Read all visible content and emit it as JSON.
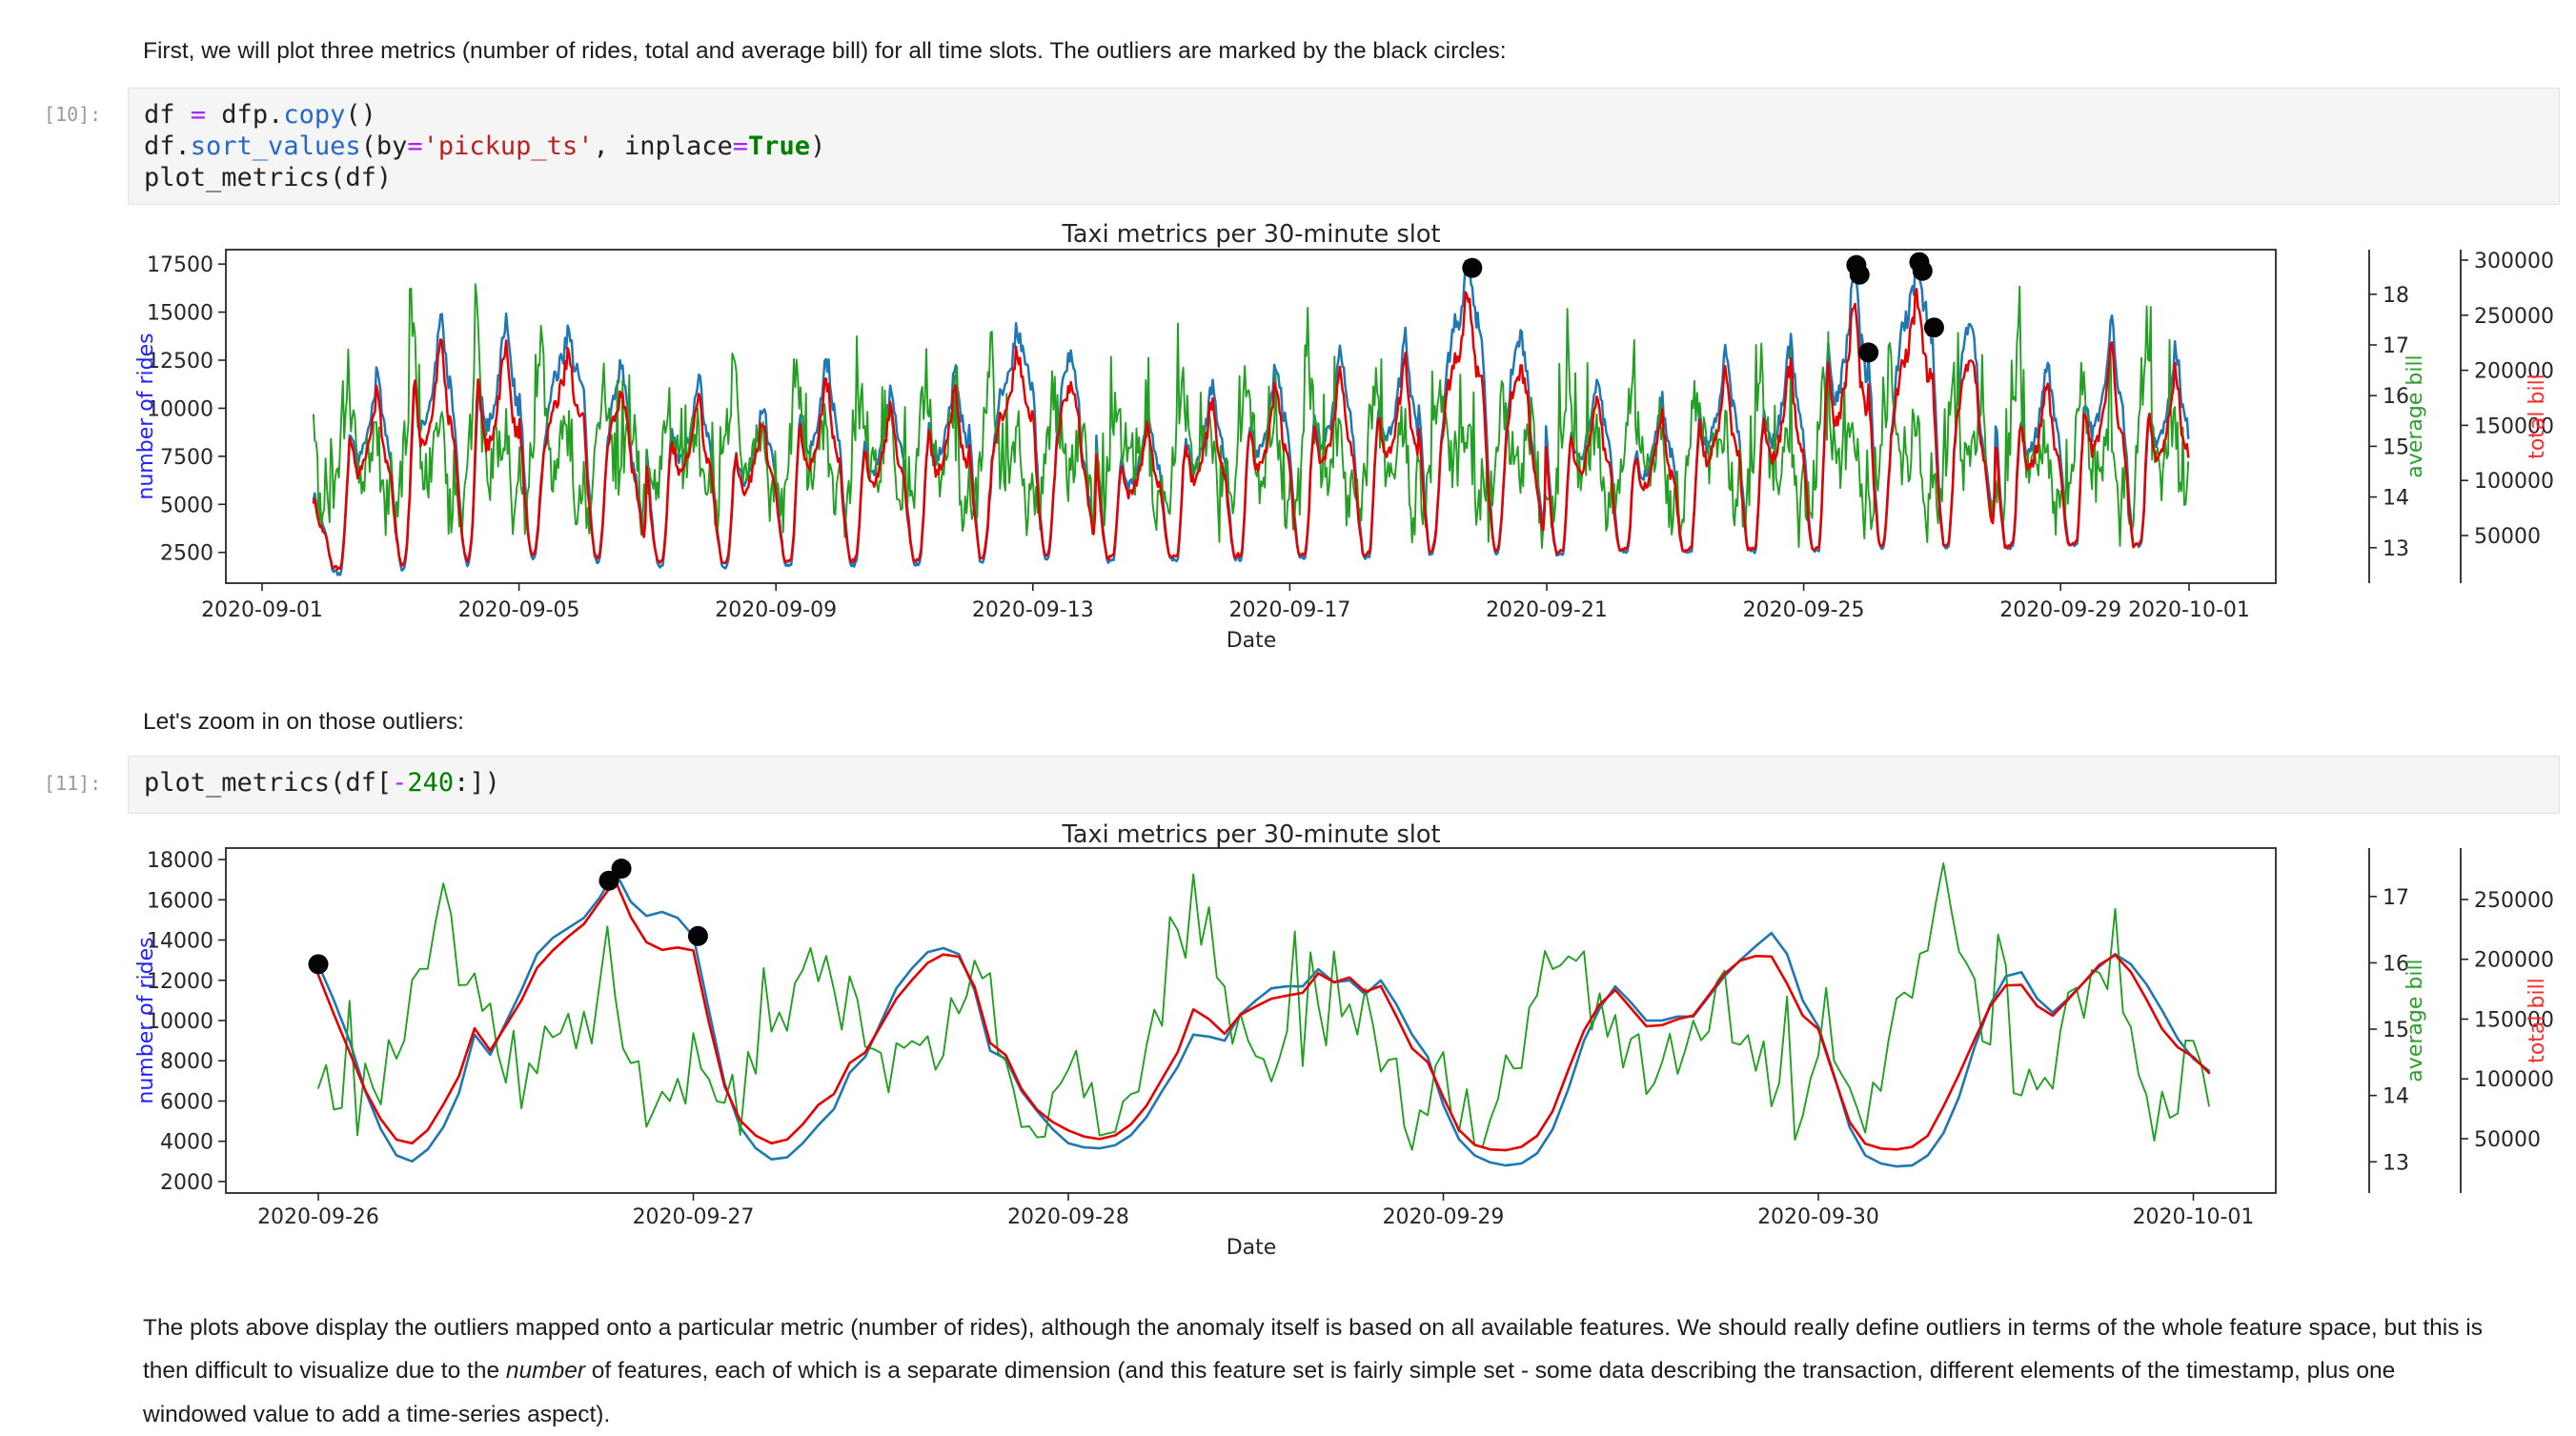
{
  "markdown": {
    "intro": "First, we will plot three metrics (number of rides, total and average bill) for all time slots. The outliers are marked by the black circles:",
    "zoom_note": "Let's zoom in on those outliers:",
    "conclusion_segments": [
      {
        "text": "The plots above display the outliers mapped onto a particular metric (number of rides), although the anomaly itself is based on all available features. We should really define outliers in terms of the whole feature space, but this is then difficult to visualize due to the ",
        "italic": false
      },
      {
        "text": "number",
        "italic": true
      },
      {
        "text": " of features, each of which is a separate dimension (and this feature set is fairly simple set - some data describing the transaction, different elements of the timestamp, plus one windowed value to add a time-series aspect).",
        "italic": false
      }
    ]
  },
  "code_colors": {
    "d": "#212121",
    "o": "#aa22ff",
    "p": "#2569c7",
    "s": "#ba2121",
    "k": "#008000",
    "n": "#008000"
  },
  "cells": [
    {
      "prompt": "[10]:",
      "lines": [
        [
          {
            "t": "df ",
            "c": "d"
          },
          {
            "t": "=",
            "c": "o"
          },
          {
            "t": " dfp.",
            "c": "d"
          },
          {
            "t": "copy",
            "c": "p"
          },
          {
            "t": "()",
            "c": "d"
          }
        ],
        [
          {
            "t": "df.",
            "c": "d"
          },
          {
            "t": "sort_values",
            "c": "p"
          },
          {
            "t": "(by",
            "c": "d"
          },
          {
            "t": "=",
            "c": "o"
          },
          {
            "t": "'pickup_ts'",
            "c": "s"
          },
          {
            "t": ", inplace",
            "c": "d"
          },
          {
            "t": "=",
            "c": "o"
          },
          {
            "t": "True",
            "c": "k"
          },
          {
            "t": ")",
            "c": "d"
          }
        ],
        [
          {
            "t": "plot_metrics(df)",
            "c": "d"
          }
        ]
      ]
    },
    {
      "prompt": "[11]:",
      "lines": [
        [
          {
            "t": "plot_metrics(df[",
            "c": "d"
          },
          {
            "t": "-",
            "c": "o"
          },
          {
            "t": "240",
            "c": "n"
          },
          {
            "t": ":])",
            "c": "d"
          }
        ]
      ]
    }
  ],
  "chart_data": [
    {
      "type": "line",
      "title": "Taxi metrics per 30-minute slot",
      "xlabel": "Date",
      "x_tick_labels": [
        "2020-09-01",
        "2020-09-05",
        "2020-09-09",
        "2020-09-13",
        "2020-09-17",
        "2020-09-21",
        "2020-09-25",
        "2020-09-29",
        "2020-10-01"
      ],
      "x_tick_days": [
        0,
        4,
        8,
        12,
        16,
        20,
        24,
        28,
        30
      ],
      "start_date": "2020-09-01",
      "t_range_days": [
        0.8,
        30.0
      ],
      "grid": false,
      "legend": "none",
      "series": [
        {
          "name": "number of rides",
          "axis": "rides",
          "color": "#1f77b4"
        },
        {
          "name": "average bill",
          "axis": "avg",
          "color": "#22a022"
        },
        {
          "name": "total bill",
          "axis": "total",
          "color": "#e60000"
        }
      ],
      "axes": {
        "rides": {
          "label": "number of rides",
          "label_color": "#2222ff",
          "ticks": [
            2500,
            5000,
            7500,
            10000,
            12500,
            15000,
            17500
          ],
          "ylim": [
            900,
            18250
          ]
        },
        "avg": {
          "label": "average bill",
          "label_color": "#2ca02c",
          "ticks": [
            13,
            14,
            15,
            16,
            17,
            18
          ],
          "ylim": [
            12.3,
            18.88
          ]
        },
        "total": {
          "label": "total bill",
          "label_color": "#ff2a2a",
          "ticks": [
            50000,
            100000,
            150000,
            200000,
            250000,
            300000
          ],
          "ylim": [
            6750,
            309500
          ]
        }
      },
      "daily_peak_rides": [
        5600,
        11900,
        14950,
        14850,
        14100,
        12050,
        11900,
        10250,
        12700,
        11000,
        12100,
        14200,
        13000,
        9900,
        11400,
        12600,
        13100,
        13900,
        17300,
        13800,
        12000,
        10500,
        13200,
        13500,
        17450,
        17600,
        14500,
        12550,
        14350,
        13300
      ],
      "saturday_day_indexes": [
        4,
        11,
        18,
        25
      ],
      "sunday_day_indexes": [
        5,
        12,
        19,
        26
      ],
      "day_shape_weekday": [
        0.62,
        0.45,
        0.32,
        0.21,
        0.135,
        0.12,
        0.17,
        0.32,
        0.56,
        0.75,
        0.7,
        0.62,
        0.6,
        0.63,
        0.66,
        0.7,
        0.75,
        0.82,
        0.92,
        1.0,
        0.93,
        0.8,
        0.76,
        0.7
      ],
      "day_shape_saturday": [
        0.78,
        0.62,
        0.45,
        0.3,
        0.18,
        0.14,
        0.16,
        0.24,
        0.38,
        0.52,
        0.63,
        0.7,
        0.76,
        0.8,
        0.83,
        0.85,
        0.88,
        0.93,
        1.0,
        0.99,
        0.92,
        0.86,
        0.84,
        0.8
      ],
      "day_shape_sunday": [
        0.8,
        0.6,
        0.42,
        0.28,
        0.18,
        0.15,
        0.17,
        0.28,
        0.48,
        0.66,
        0.76,
        0.86,
        0.93,
        0.98,
        1.0,
        0.97,
        0.92,
        0.8,
        0.62,
        0.56,
        0.5,
        0.42,
        0.34,
        0.28
      ],
      "avg_bill_day_shape": [
        14.6,
        14.0,
        13.6,
        13.9,
        14.4,
        14.9,
        15.4,
        15.9,
        0,
        0,
        15.3,
        14.9,
        14.6,
        14.4,
        14.5,
        14.7,
        15.0,
        15.2,
        15.4,
        15.3,
        14.8,
        14.1,
        13.5,
        13.9
      ],
      "avg_bill_morning_peak": [
        16.0,
        16.6,
        17.8,
        18.5,
        17.2,
        16.4,
        15.8,
        17.0,
        16.4,
        16.0,
        16.6,
        17.3,
        16.2,
        15.7,
        16.4,
        16.8,
        16.2,
        16.6,
        16.4,
        16.0,
        16.8,
        16.4,
        16.1,
        16.6,
        16.2,
        16.7,
        16.3,
        17.1,
        16.5,
        17.5
      ],
      "outliers_day_rides": [
        [
          18.84,
          17300
        ],
        [
          24.82,
          17450
        ],
        [
          24.87,
          16950
        ],
        [
          25.01,
          12900
        ],
        [
          25.8,
          17600
        ],
        [
          25.85,
          17150
        ],
        [
          26.03,
          14200
        ]
      ]
    },
    {
      "type": "line",
      "title": "Taxi metrics per 30-minute slot",
      "xlabel": "Date",
      "x_tick_labels": [
        "2020-09-26",
        "2020-09-27",
        "2020-09-28",
        "2020-09-29",
        "2020-09-30",
        "2020-10-01"
      ],
      "x_tick_days": [
        0,
        1,
        2,
        3,
        4,
        5
      ],
      "start_date": "2020-09-26",
      "t_range_hours": [
        0,
        121
      ],
      "grid": false,
      "legend": "none",
      "series": [
        {
          "name": "number of rides",
          "axis": "rides",
          "color": "#1f77b4"
        },
        {
          "name": "average bill",
          "axis": "avg",
          "color": "#22a022"
        },
        {
          "name": "total bill",
          "axis": "total",
          "color": "#e60000"
        }
      ],
      "axes": {
        "rides": {
          "label": "number of rides",
          "label_color": "#2222ff",
          "ticks": [
            2000,
            4000,
            6000,
            8000,
            10000,
            12000,
            14000,
            16000,
            18000
          ],
          "ylim": [
            1430,
            18570
          ]
        },
        "avg": {
          "label": "average bill",
          "label_color": "#2ca02c",
          "ticks": [
            13,
            14,
            15,
            16,
            17
          ],
          "ylim": [
            12.53,
            17.73
          ]
        },
        "total": {
          "label": "total bill",
          "label_color": "#ff2a2a",
          "ticks": [
            50000,
            100000,
            150000,
            200000,
            250000
          ],
          "ylim": [
            4580,
            293000
          ]
        }
      },
      "rides_hourly": [
        12800,
        11000,
        9000,
        6500,
        4600,
        3300,
        3000,
        3600,
        4700,
        6400,
        9300,
        8300,
        9900,
        11500,
        13300,
        14100,
        14600,
        15100,
        16100,
        17400,
        15900,
        15200,
        15400,
        15100,
        14200,
        10500,
        6900,
        4700,
        3650,
        3100,
        3200,
        3900,
        4800,
        5600,
        7400,
        8200,
        9900,
        11600,
        12600,
        13400,
        13600,
        13300,
        11500,
        8500,
        8100,
        6500,
        5500,
        4600,
        3900,
        3700,
        3650,
        3800,
        4300,
        5200,
        6500,
        7700,
        9300,
        9200,
        9000,
        10300,
        11000,
        11600,
        11700,
        11700,
        12550,
        11900,
        12000,
        11300,
        12000,
        10800,
        9300,
        8200,
        5800,
        4100,
        3300,
        2950,
        2800,
        2900,
        3400,
        4600,
        6600,
        9000,
        10600,
        11700,
        10900,
        10000,
        10000,
        10200,
        10200,
        11200,
        12200,
        13000,
        13700,
        14350,
        13300,
        11000,
        9700,
        7300,
        4700,
        3300,
        2900,
        2750,
        2800,
        3300,
        4400,
        6200,
        8700,
        10800,
        12200,
        12400,
        11100,
        10400,
        11100,
        11900,
        12700,
        13300,
        12800,
        11800,
        10500,
        9100,
        8100,
        7500
      ],
      "avg_bill_day_shape": [
        14.6,
        14.0,
        13.6,
        13.9,
        14.4,
        14.9,
        15.4,
        15.9,
        0,
        0,
        15.3,
        14.9,
        14.6,
        14.4,
        14.5,
        14.7,
        15.0,
        15.2,
        15.4,
        15.3,
        14.8,
        14.1,
        13.5,
        13.9
      ],
      "avg_bill_morning_peak": [
        16.7,
        16.3,
        17.0,
        16.3,
        17.45,
        15.5
      ],
      "outliers_hour_rides": [
        [
          0,
          12800
        ],
        [
          18.6,
          16950
        ],
        [
          19.4,
          17550
        ],
        [
          24.3,
          14200
        ]
      ]
    }
  ]
}
